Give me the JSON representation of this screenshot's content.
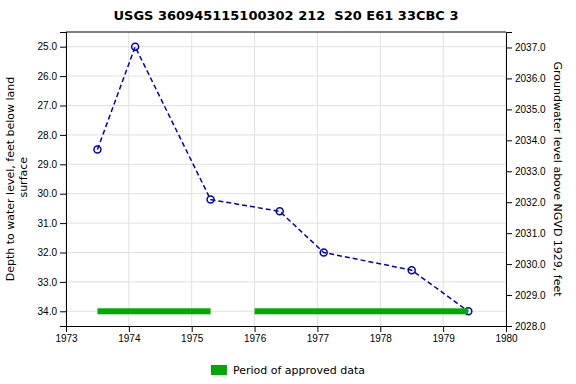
{
  "chart_data": {
    "type": "line",
    "title": "USGS 360945115100302 212  S20 E61 33CBC 3",
    "y_label": "Depth to water level, feet below land\n surface",
    "y2_label": "Groundwater level above NGVD 1929, feet",
    "x": [
      1973.5,
      1974.1,
      1975.3,
      1976.4,
      1977.1,
      1978.5,
      1979.4
    ],
    "series": [
      {
        "type": "line",
        "color": "#0000cc",
        "line_style": "dashed",
        "marker": "circle",
        "values": [
          28.5,
          25.0,
          30.2,
          30.6,
          32.0,
          32.6,
          34.0
        ]
      },
      {
        "type": "range_bar",
        "name": "Period of approved data",
        "color": "#00aa00",
        "y": 34.0,
        "ranges": [
          [
            1973.5,
            1975.3
          ],
          [
            1976.0,
            1979.4
          ]
        ]
      }
    ],
    "xlim": [
      1973,
      1980
    ],
    "xticks": [
      1973,
      1974,
      1975,
      1976,
      1977,
      1978,
      1979,
      1980
    ],
    "ylim": [
      34.5,
      24.5
    ],
    "yticks": [
      {
        "value": 25.0,
        "label": "25.0"
      },
      {
        "value": 26.0,
        "label": "26.0"
      },
      {
        "value": 27.0,
        "label": "27.0"
      },
      {
        "value": 28.0,
        "label": "28.0"
      },
      {
        "value": 29.0,
        "label": "29.0"
      },
      {
        "value": 30.0,
        "label": "30.0"
      },
      {
        "value": 31.0,
        "label": "31.0"
      },
      {
        "value": 32.0,
        "label": "32.0"
      },
      {
        "value": 33.0,
        "label": "33.0"
      },
      {
        "value": 34.0,
        "label": "34.0"
      }
    ],
    "y2lim": [
      2028.0,
      2037.5
    ],
    "y2ticks": [
      {
        "value": 2028.0,
        "label": "2028.0"
      },
      {
        "value": 2029.0,
        "label": "2029.0"
      },
      {
        "value": 2030.0,
        "label": "2030.0"
      },
      {
        "value": 2031.0,
        "label": "2031.0"
      },
      {
        "value": 2032.0,
        "label": "2032.0"
      },
      {
        "value": 2033.0,
        "label": "2033.0"
      },
      {
        "value": 2034.0,
        "label": "2034.0"
      },
      {
        "value": 2035.0,
        "label": "2035.0"
      },
      {
        "value": 2036.0,
        "label": "2036.0"
      },
      {
        "value": 2037.0,
        "label": "2037.0"
      }
    ],
    "grid": true,
    "legend": "bottom"
  }
}
